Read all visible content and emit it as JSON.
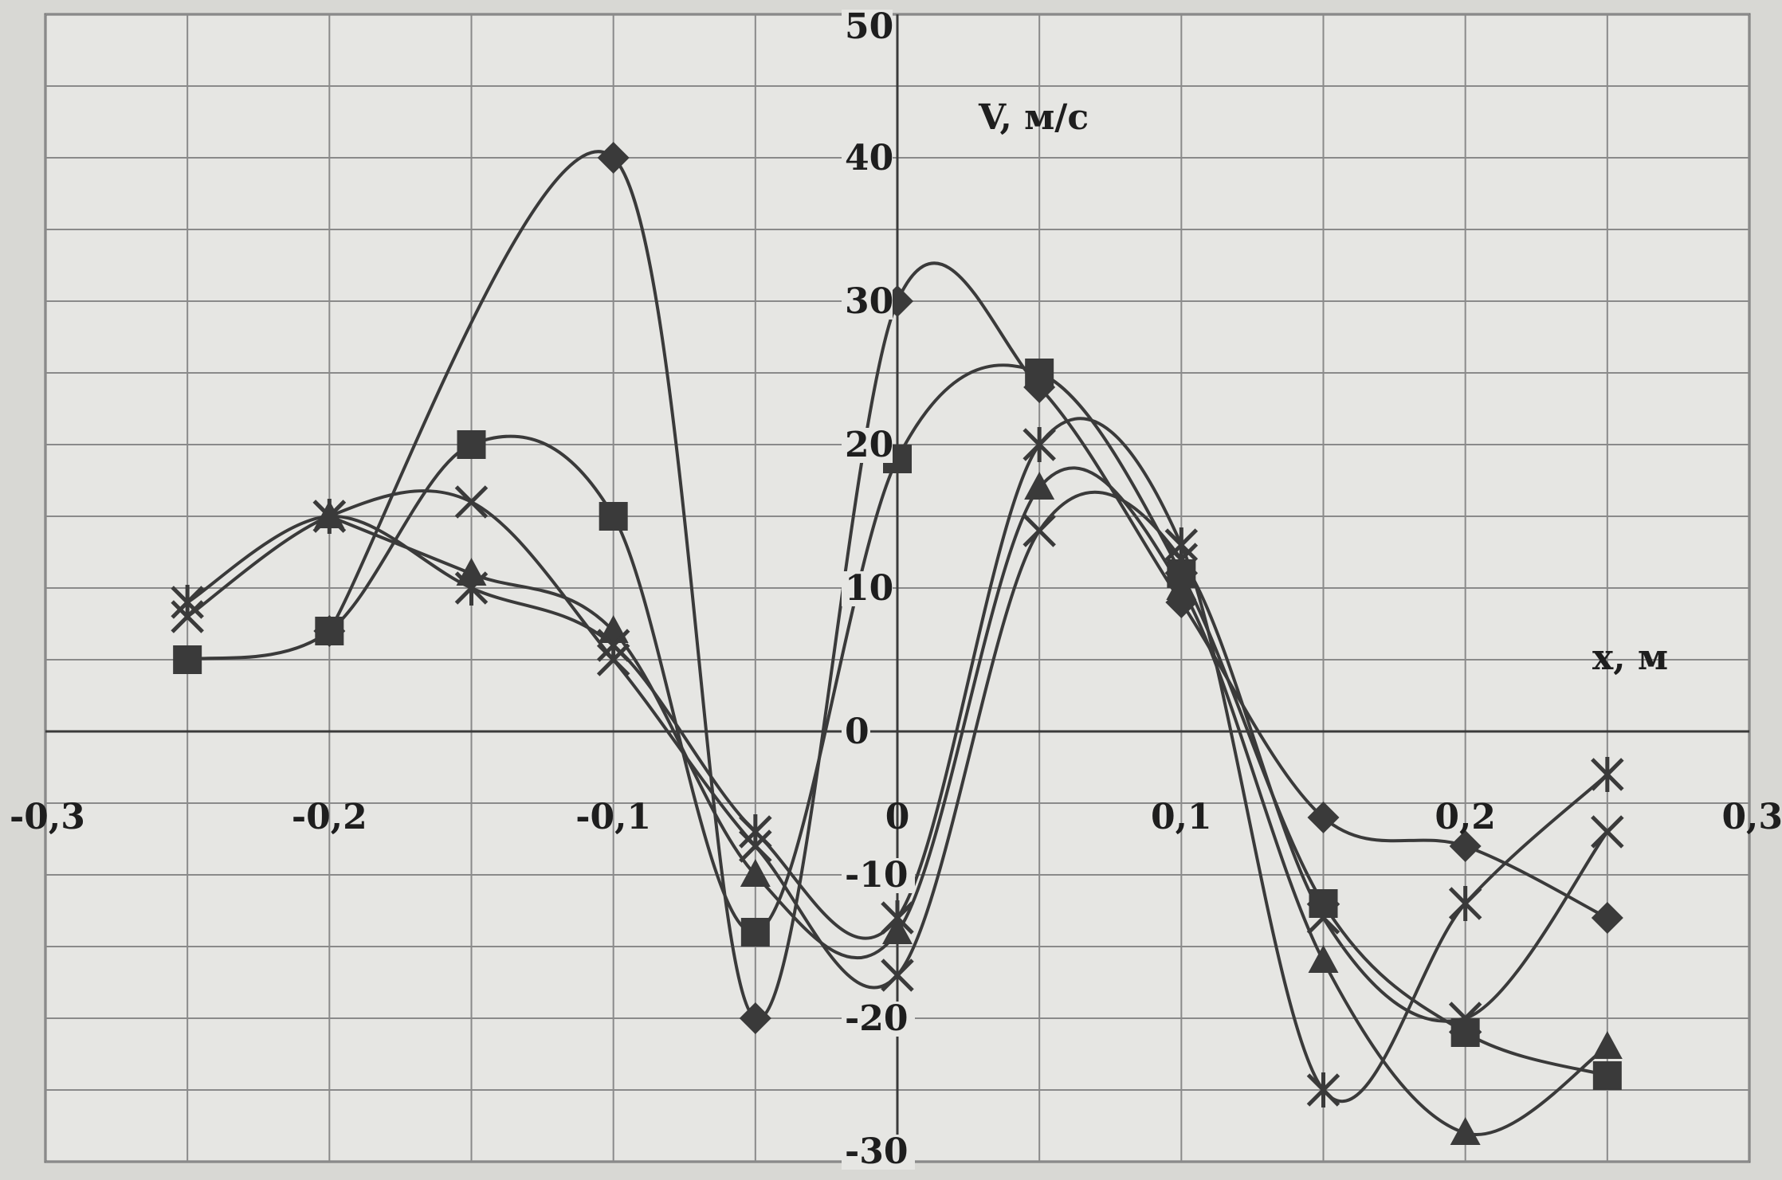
{
  "chart_data": {
    "type": "line",
    "title": "",
    "xlabel": "x, м",
    "ylabel": "V, м/с",
    "xlim": [
      -0.3,
      0.3
    ],
    "ylim": [
      -30,
      50
    ],
    "x_ticks": [
      -0.3,
      -0.2,
      -0.1,
      0,
      0.1,
      0.2,
      0.3
    ],
    "x_tick_labels": [
      "-0,3",
      "-0,2",
      "-0,1",
      "0",
      "0,1",
      "0,2",
      "0,3"
    ],
    "y_ticks": [
      -30,
      -20,
      -10,
      0,
      10,
      20,
      30,
      40,
      50
    ],
    "y_tick_labels": [
      "-30",
      "-20",
      "-10",
      "0",
      "10",
      "20",
      "30",
      "40",
      "50"
    ],
    "grid": true,
    "line_color": "#3a3a3a",
    "series": [
      {
        "marker": "diamond",
        "x": [
          -0.2,
          -0.1,
          -0.05,
          0,
          0.05,
          0.1,
          0.15,
          0.2,
          0.25
        ],
        "y": [
          7,
          40,
          -20,
          30,
          24,
          9,
          -6,
          -8,
          -13
        ]
      },
      {
        "marker": "square",
        "x": [
          -0.25,
          -0.2,
          -0.15,
          -0.1,
          -0.05,
          0,
          0.05,
          0.1,
          0.15,
          0.2,
          0.25
        ],
        "y": [
          5,
          7,
          20,
          15,
          -14,
          19,
          25,
          11,
          -12,
          -21,
          -24
        ]
      },
      {
        "marker": "triangle",
        "x": [
          -0.2,
          -0.15,
          -0.1,
          -0.05,
          0,
          0.05,
          0.1,
          0.15,
          0.2,
          0.25
        ],
        "y": [
          15,
          11,
          7,
          -10,
          -14,
          17,
          10,
          -16,
          -28,
          -22
        ]
      },
      {
        "marker": "asterisk",
        "x": [
          -0.25,
          -0.2,
          -0.15,
          -0.1,
          -0.05,
          0,
          0.05,
          0.1,
          0.15,
          0.2,
          0.25
        ],
        "y": [
          9,
          15,
          10,
          6,
          -7,
          -13,
          20,
          13,
          -25,
          -12,
          -3
        ]
      },
      {
        "marker": "x",
        "x": [
          -0.25,
          -0.2,
          -0.15,
          -0.1,
          -0.05,
          0,
          0.05,
          0.1,
          0.15,
          0.2,
          0.25
        ],
        "y": [
          8,
          15,
          16,
          5,
          -8,
          -17,
          14,
          12,
          -13,
          -20,
          -7
        ]
      }
    ]
  }
}
